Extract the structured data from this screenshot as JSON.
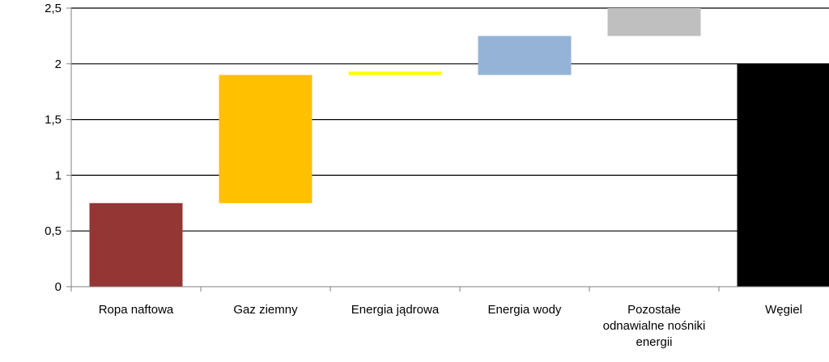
{
  "chart_data": {
    "type": "bar",
    "variant": "waterfall",
    "categories": [
      [
        "Ropa naftowa"
      ],
      [
        "Gaz ziemny"
      ],
      [
        "Energia jądrowa"
      ],
      [
        "Energia wody"
      ],
      [
        "Pozostałe",
        "odnawialne nośniki",
        "energii"
      ],
      [
        "Węgiel"
      ]
    ],
    "bars": [
      {
        "start": 0,
        "end": 0.75,
        "color": "#943634"
      },
      {
        "start": 0.75,
        "end": 1.9,
        "color": "#FFC000"
      },
      {
        "start": 1.9,
        "end": 1.93,
        "color": "#FFFF00"
      },
      {
        "start": 1.9,
        "end": 2.25,
        "color": "#95B3D7"
      },
      {
        "start": 2.25,
        "end": 2.5,
        "color": "#BFBFBF"
      },
      {
        "start": 0,
        "end": 2.0,
        "color": "#000000"
      }
    ],
    "yticks": [
      "0",
      "0,5",
      "1",
      "1,5",
      "2",
      "2,5"
    ],
    "ylim": [
      0,
      2.5
    ],
    "grid": true,
    "legend": "none",
    "title": "",
    "xlabel": "",
    "ylabel": ""
  }
}
